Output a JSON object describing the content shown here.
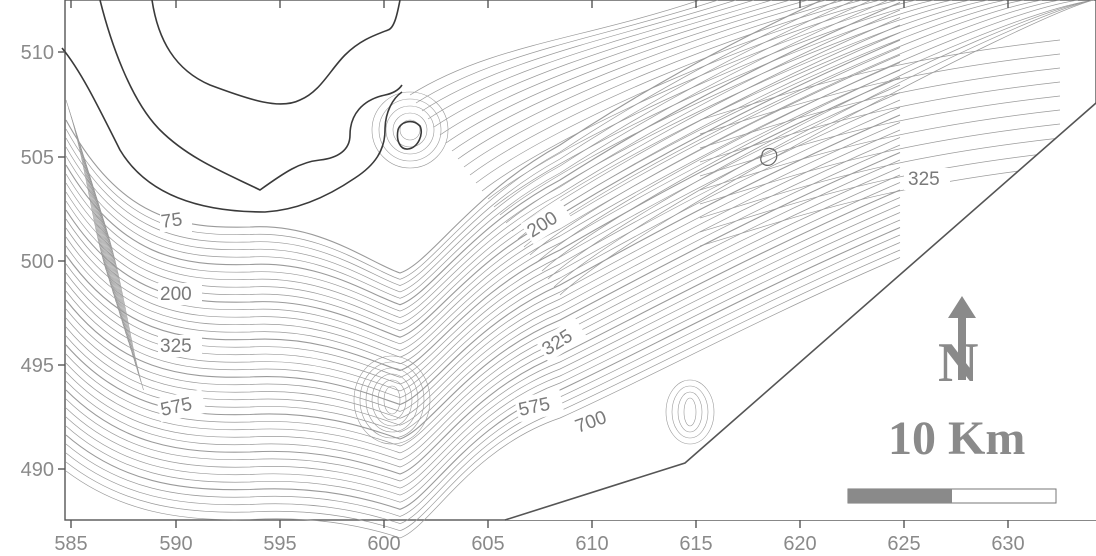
{
  "x_axis": {
    "unit": "km",
    "ticks": [
      "585",
      "590",
      "595",
      "600",
      "605",
      "610",
      "615",
      "620",
      "625",
      "630"
    ]
  },
  "y_axis": {
    "unit": "km",
    "ticks": [
      "510",
      "505",
      "500",
      "495",
      "490"
    ]
  },
  "contour_labels": [
    "75",
    "200",
    "325",
    "575",
    "200",
    "325",
    "575",
    "700",
    "325"
  ],
  "scale_bar": {
    "label": "10 Km",
    "filled_fraction": 0.5,
    "fill_color": "#8a8a8a"
  },
  "north_arrow": {
    "letter": "N"
  },
  "colors": {
    "contour": "#9a9a9a",
    "bold_contour": "#3a3a3a",
    "frame": "#555555",
    "ink": "#8a8a8a"
  }
}
